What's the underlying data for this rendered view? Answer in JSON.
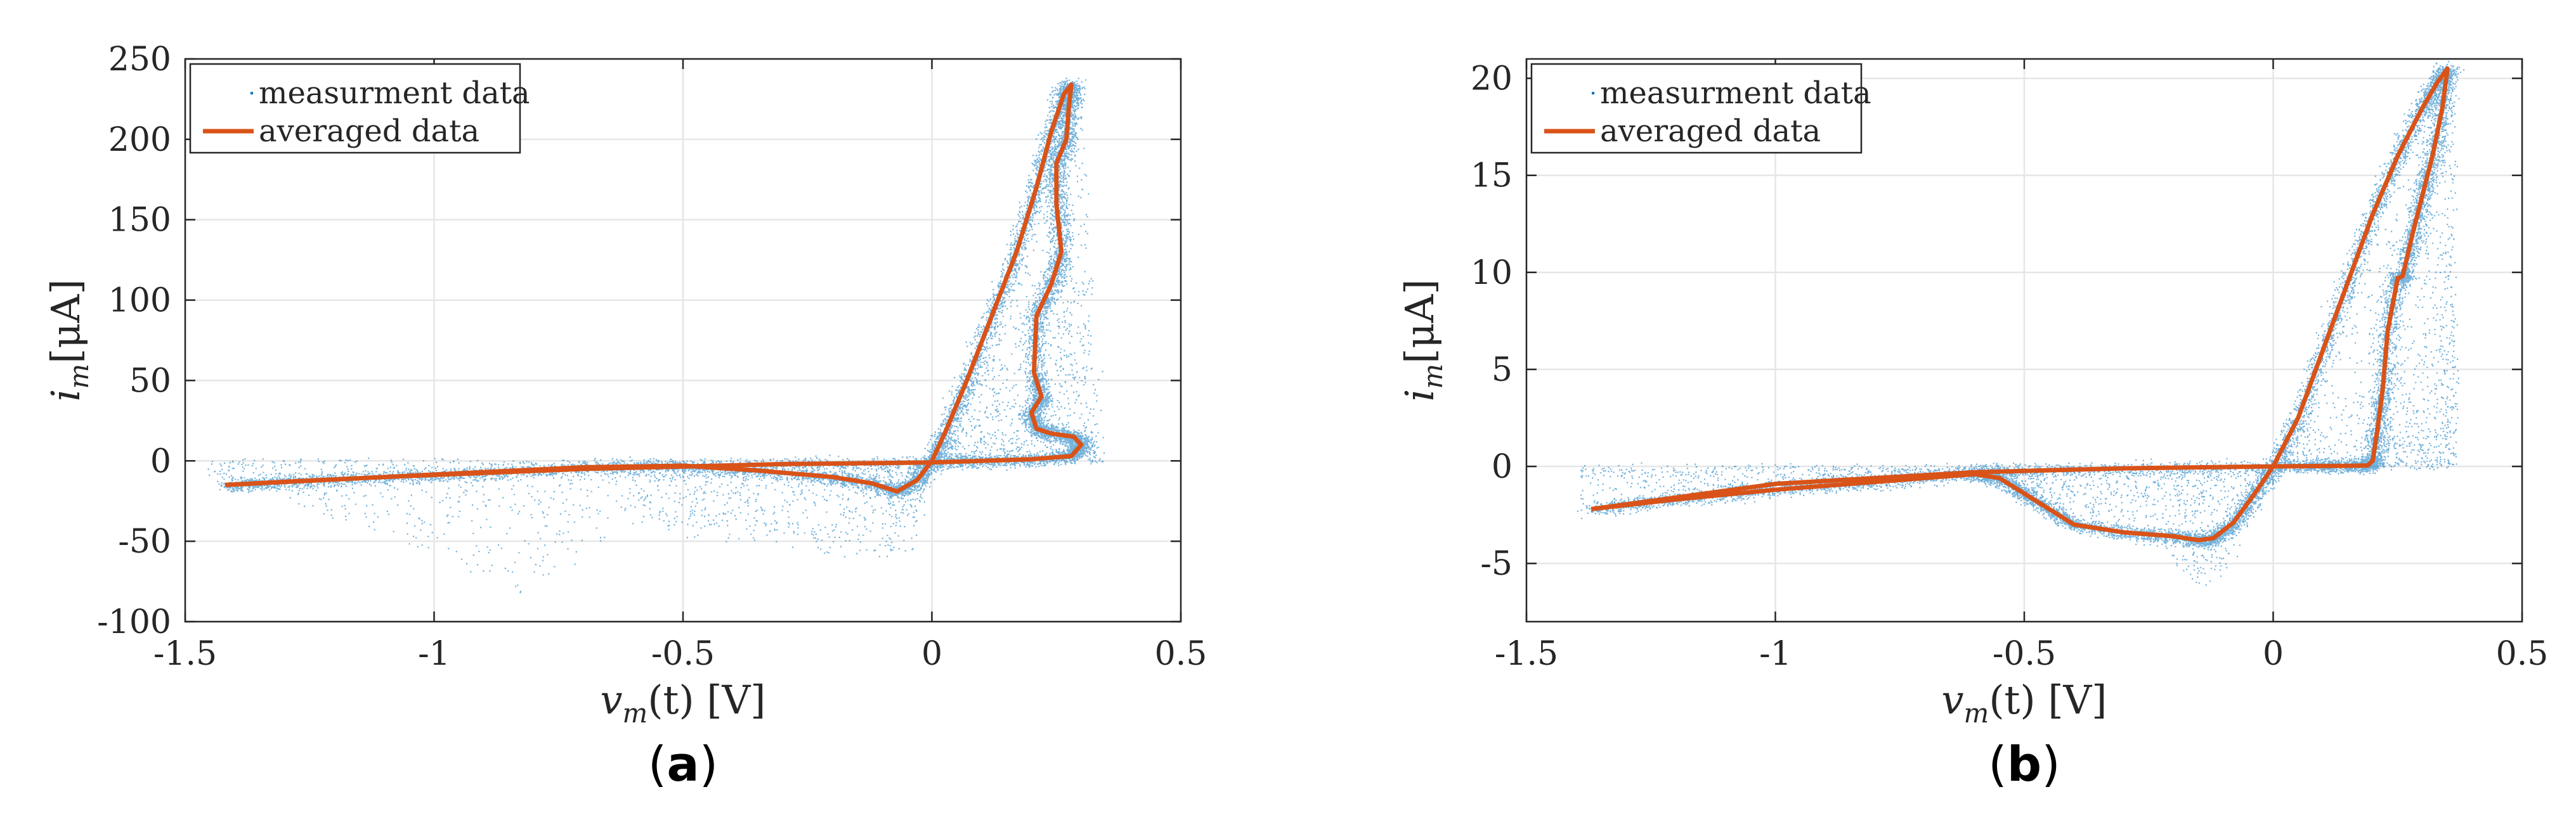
{
  "chart_data": [
    {
      "type": "scatter",
      "panel_label": "(a)",
      "panel_letter": "a",
      "xlabel": "v_m(t) [V]",
      "xlabel_main": "v",
      "xlabel_sub": "m",
      "xlabel_rest": "(t) [V]",
      "ylabel": "i_m[μA]",
      "ylabel_main": "i",
      "ylabel_sub": "m",
      "ylabel_rest": "[μA]",
      "xlim": [
        -1.5,
        0.5
      ],
      "ylim": [
        -100,
        250
      ],
      "xticks": [
        -1.5,
        -1,
        -0.5,
        0,
        0.5
      ],
      "xtick_labels": [
        "-1.5",
        "-1",
        "-0.5",
        "0",
        "0.5"
      ],
      "yticks": [
        -100,
        -50,
        0,
        50,
        100,
        150,
        200,
        250
      ],
      "ytick_labels": [
        "-100",
        "-50",
        "0",
        "50",
        "100",
        "150",
        "200",
        "250"
      ],
      "grid": true,
      "legend_position": "top-left",
      "legend": [
        "measurment data",
        "averaged data"
      ],
      "colors": {
        "measurement": "#0072BD",
        "averaged": "#D95319"
      },
      "series": [
        {
          "name": "averaged data",
          "x": [
            -1.42,
            -1.3,
            -1.1,
            -0.9,
            -0.7,
            -0.5,
            -0.35,
            -0.2,
            -0.12,
            -0.07,
            -0.03,
            0.0,
            0.03,
            0.07,
            0.12,
            0.17,
            0.21,
            0.24,
            0.265,
            0.28,
            0.275,
            0.27,
            0.25,
            0.25,
            0.26,
            0.24,
            0.21,
            0.205,
            0.22,
            0.2,
            0.21,
            0.24,
            0.285,
            0.3,
            0.28,
            0.2,
            0.1,
            0.0,
            -0.3,
            -0.7,
            -1.1,
            -1.42
          ],
          "y": [
            -15,
            -13,
            -10,
            -7,
            -4,
            -3,
            -6,
            -10,
            -14,
            -19,
            -12,
            0,
            20,
            50,
            90,
            130,
            170,
            205,
            228,
            234,
            220,
            200,
            185,
            160,
            130,
            110,
            90,
            55,
            40,
            30,
            20,
            17,
            15,
            10,
            3,
            1,
            0,
            -1,
            -2,
            -5,
            -10,
            -15
          ]
        },
        {
          "name": "measurment data",
          "x": [
            -1.45,
            -1.2,
            -1.0,
            -0.8,
            -0.6,
            -0.5,
            -0.4,
            -0.3,
            -0.2,
            -0.1,
            -0.05,
            0.0,
            0.05,
            0.1,
            0.15,
            0.2,
            0.25,
            0.27,
            0.3,
            0.33
          ],
          "y": [
            -8,
            -35,
            -60,
            -85,
            -40,
            -45,
            -50,
            -52,
            -58,
            -60,
            -55,
            0,
            40,
            80,
            130,
            170,
            210,
            240,
            215,
            5
          ]
        }
      ]
    },
    {
      "type": "scatter",
      "panel_label": "(b)",
      "panel_letter": "b",
      "xlabel": "v_m(t) [V]",
      "xlabel_main": "v",
      "xlabel_sub": "m",
      "xlabel_rest": "(t) [V]",
      "ylabel": "i_m[μA]",
      "ylabel_main": "i",
      "ylabel_sub": "m",
      "ylabel_rest": "[μA]",
      "xlim": [
        -1.5,
        0.5
      ],
      "ylim": [
        -8,
        21
      ],
      "xticks": [
        -1.5,
        -1,
        -0.5,
        0,
        0.5
      ],
      "xtick_labels": [
        "-1.5",
        "-1",
        "-0.5",
        "0",
        "0.5"
      ],
      "yticks": [
        -5,
        0,
        5,
        10,
        15,
        20
      ],
      "ytick_labels": [
        "-5",
        "0",
        "5",
        "10",
        "15",
        "20"
      ],
      "grid": true,
      "legend_position": "top-left",
      "legend": [
        "measurment data",
        "averaged data"
      ],
      "colors": {
        "measurement": "#0072BD",
        "averaged": "#D95319"
      },
      "series": [
        {
          "name": "averaged data",
          "x": [
            -1.37,
            -1.2,
            -1.0,
            -0.8,
            -0.6,
            -0.55,
            -0.5,
            -0.45,
            -0.4,
            -0.3,
            -0.2,
            -0.15,
            -0.12,
            -0.08,
            -0.04,
            0.0,
            0.05,
            0.1,
            0.15,
            0.2,
            0.25,
            0.3,
            0.33,
            0.35,
            0.34,
            0.32,
            0.3,
            0.28,
            0.26,
            0.25,
            0.23,
            0.22,
            0.21,
            0.2,
            0.19,
            0.15,
            0.1,
            0.0,
            -0.3,
            -0.6,
            -1.0,
            -1.37
          ],
          "y": [
            -2.2,
            -1.7,
            -1.2,
            -0.8,
            -0.4,
            -0.6,
            -1.4,
            -2.2,
            -3.0,
            -3.4,
            -3.6,
            -3.8,
            -3.7,
            -2.9,
            -1.5,
            0.0,
            2.5,
            6.0,
            9.5,
            13.0,
            16.0,
            18.5,
            19.8,
            20.5,
            18.5,
            16.0,
            14.0,
            12.0,
            9.8,
            9.7,
            7.0,
            4.0,
            2.0,
            0.3,
            0.05,
            0.03,
            0.02,
            0.0,
            -0.1,
            -0.3,
            -0.9,
            -2.2
          ]
        },
        {
          "name": "measurment data",
          "x": [
            -1.4,
            -1.2,
            -1.0,
            -0.8,
            -0.6,
            -0.5,
            -0.4,
            -0.3,
            -0.2,
            -0.15,
            -0.1,
            0.0,
            0.1,
            0.2,
            0.25,
            0.3,
            0.33,
            0.36,
            0.35,
            0.19
          ],
          "y": [
            -2.5,
            -1.8,
            -1.3,
            -0.9,
            -0.5,
            -1.0,
            -2.0,
            -3.5,
            -5.0,
            -6.2,
            -5.5,
            0.0,
            6.0,
            12.0,
            15.0,
            18.0,
            20.8,
            20.0,
            16.0,
            0.0
          ]
        }
      ]
    }
  ]
}
